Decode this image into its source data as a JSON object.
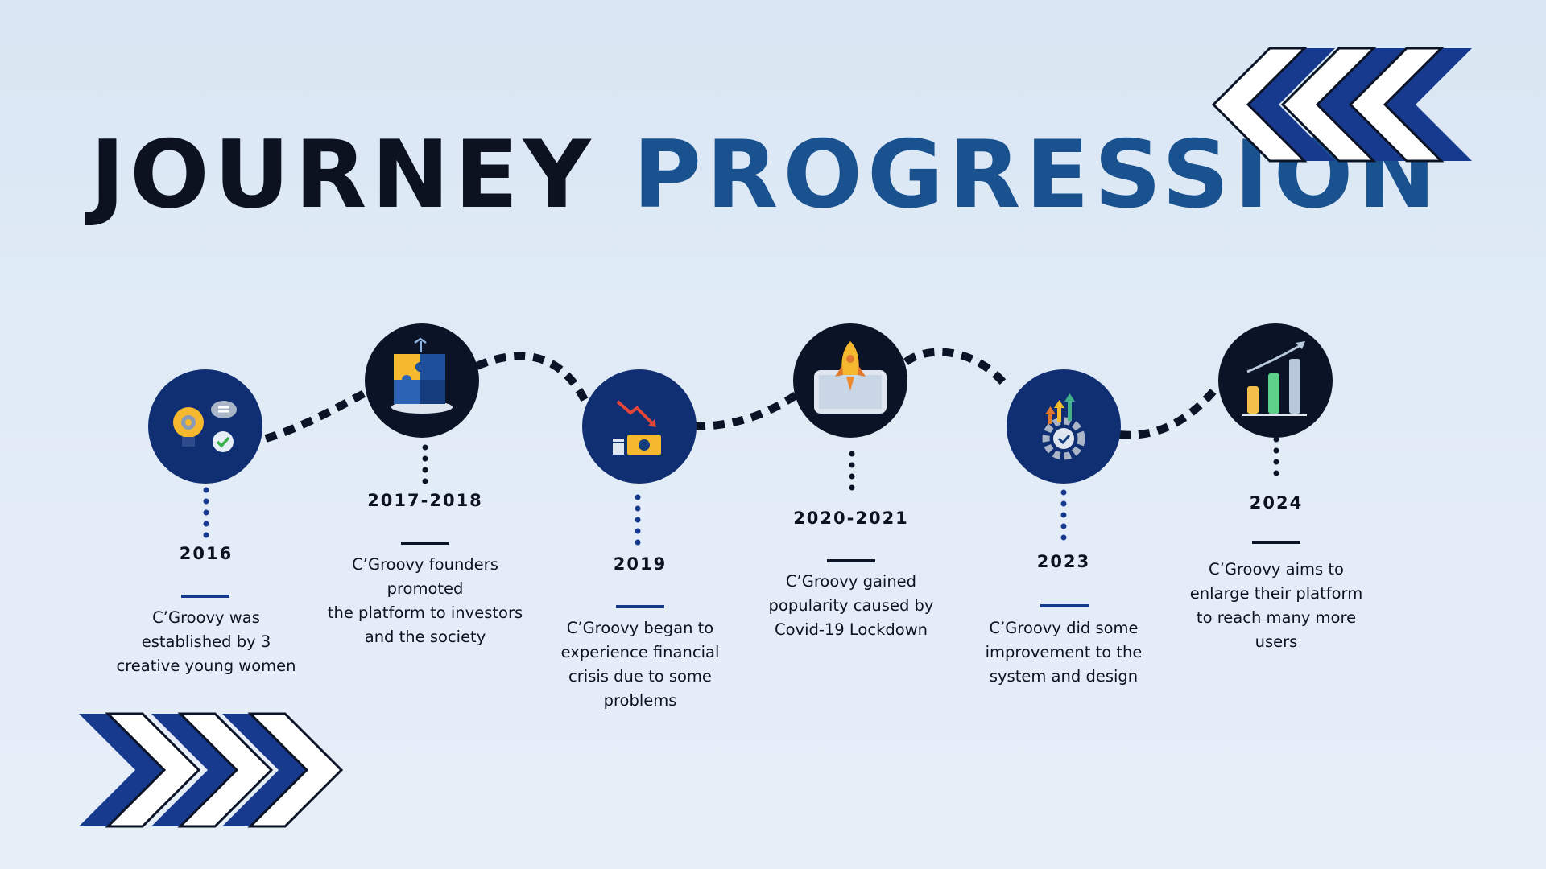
{
  "title": {
    "word1": "JOURNEY",
    "word2": "PROGRESSION"
  },
  "colors": {
    "navy": "#102e72",
    "dark": "#0b1426",
    "title_accent": "#1a5290",
    "background": "#dfeaf6"
  },
  "milestones": [
    {
      "year": "2016",
      "icon": "lightbulb-gear-icon",
      "lines": [
        "C’Groovy was",
        "established by 3",
        "creative young women"
      ]
    },
    {
      "year": "2017-2018",
      "icon": "puzzle-team-icon",
      "lines": [
        "C’Groovy founders",
        "promoted",
        "the platform to investors",
        "and the society"
      ]
    },
    {
      "year": "2019",
      "icon": "declining-money-chart-icon",
      "lines": [
        "C’Groovy began to",
        "experience financial",
        "crisis due to some",
        "problems"
      ]
    },
    {
      "year": "2020-2021",
      "icon": "rocket-launch-icon",
      "lines": [
        "C’Groovy gained",
        "popularity caused by",
        "Covid-19 Lockdown"
      ]
    },
    {
      "year": "2023",
      "icon": "gear-growth-arrows-icon",
      "lines": [
        "C’Groovy did some",
        "improvement to the",
        "system and design"
      ]
    },
    {
      "year": "2024",
      "icon": "growth-bar-chart-icon",
      "lines": [
        "C’Groovy aims to",
        "enlarge their platform",
        "to reach many more",
        "users"
      ]
    }
  ]
}
